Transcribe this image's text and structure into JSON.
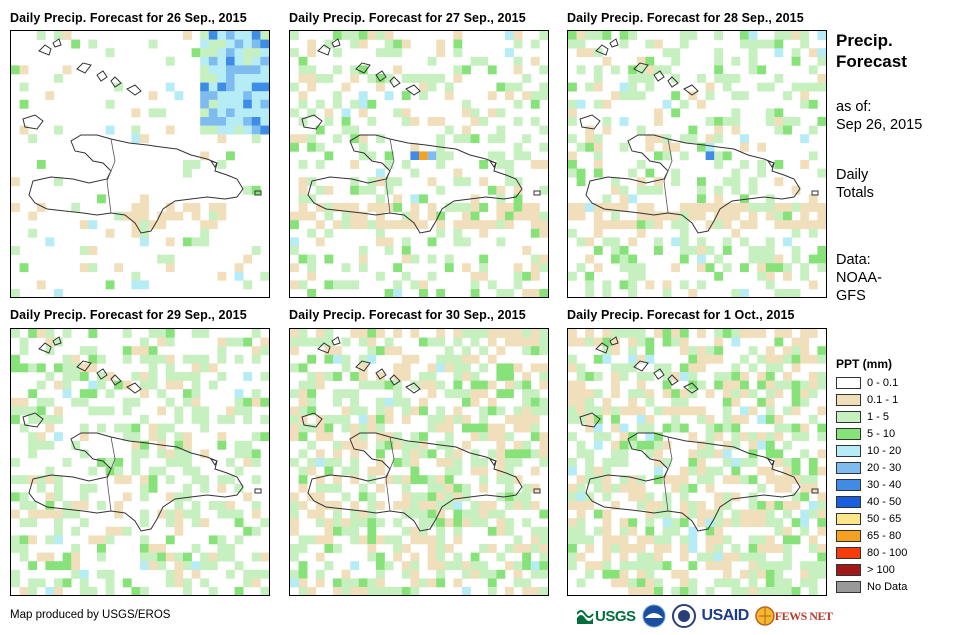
{
  "panels": [
    {
      "title": "Daily Precip. Forecast for 26 Sep., 2015",
      "day": "26 Sep., 2015"
    },
    {
      "title": "Daily Precip. Forecast for 27 Sep., 2015",
      "day": "27 Sep., 2015"
    },
    {
      "title": "Daily Precip. Forecast for 28 Sep., 2015",
      "day": "28 Sep., 2015"
    },
    {
      "title": "Daily Precip. Forecast for 29 Sep., 2015",
      "day": "29 Sep., 2015"
    },
    {
      "title": "Daily Precip. Forecast for 30 Sep., 2015",
      "day": "30 Sep., 2015"
    },
    {
      "title": "Daily Precip. Forecast for 1 Oct., 2015",
      "day": "1 Oct., 2015"
    }
  ],
  "side": {
    "title_line1": "Precip.",
    "title_line2": "Forecast",
    "asof_line1": "as of:",
    "asof_line2": "Sep 26, 2015",
    "totals_line1": "Daily",
    "totals_line2": "Totals",
    "data_line1": "Data:",
    "data_line2": "NOAA-",
    "data_line3": "GFS"
  },
  "legend": {
    "title": "PPT (mm)",
    "items": [
      {
        "label": "0 - 0.1",
        "color": "#ffffff"
      },
      {
        "label": "0.1 - 1",
        "color": "#f1dfbc"
      },
      {
        "label": "1 - 5",
        "color": "#c6f0c0"
      },
      {
        "label": "5 - 10",
        "color": "#88e27a"
      },
      {
        "label": "10 - 20",
        "color": "#b6ecf5"
      },
      {
        "label": "20 - 30",
        "color": "#7ebcef"
      },
      {
        "label": "30 - 40",
        "color": "#3f8ce6"
      },
      {
        "label": "40 - 50",
        "color": "#1a5ee0"
      },
      {
        "label": "50 - 65",
        "color": "#fde68a"
      },
      {
        "label": "65 - 80",
        "color": "#f6a020"
      },
      {
        "label": "80 - 100",
        "color": "#f43c0c"
      },
      {
        "label": "> 100",
        "color": "#a01818"
      },
      {
        "label": "No Data",
        "color": "#999999"
      }
    ]
  },
  "credit": "Map produced by USGS/EROS",
  "logos": {
    "usgs": "USGS",
    "usaid": "USAID",
    "fewsnet": "FEWS NET"
  }
}
